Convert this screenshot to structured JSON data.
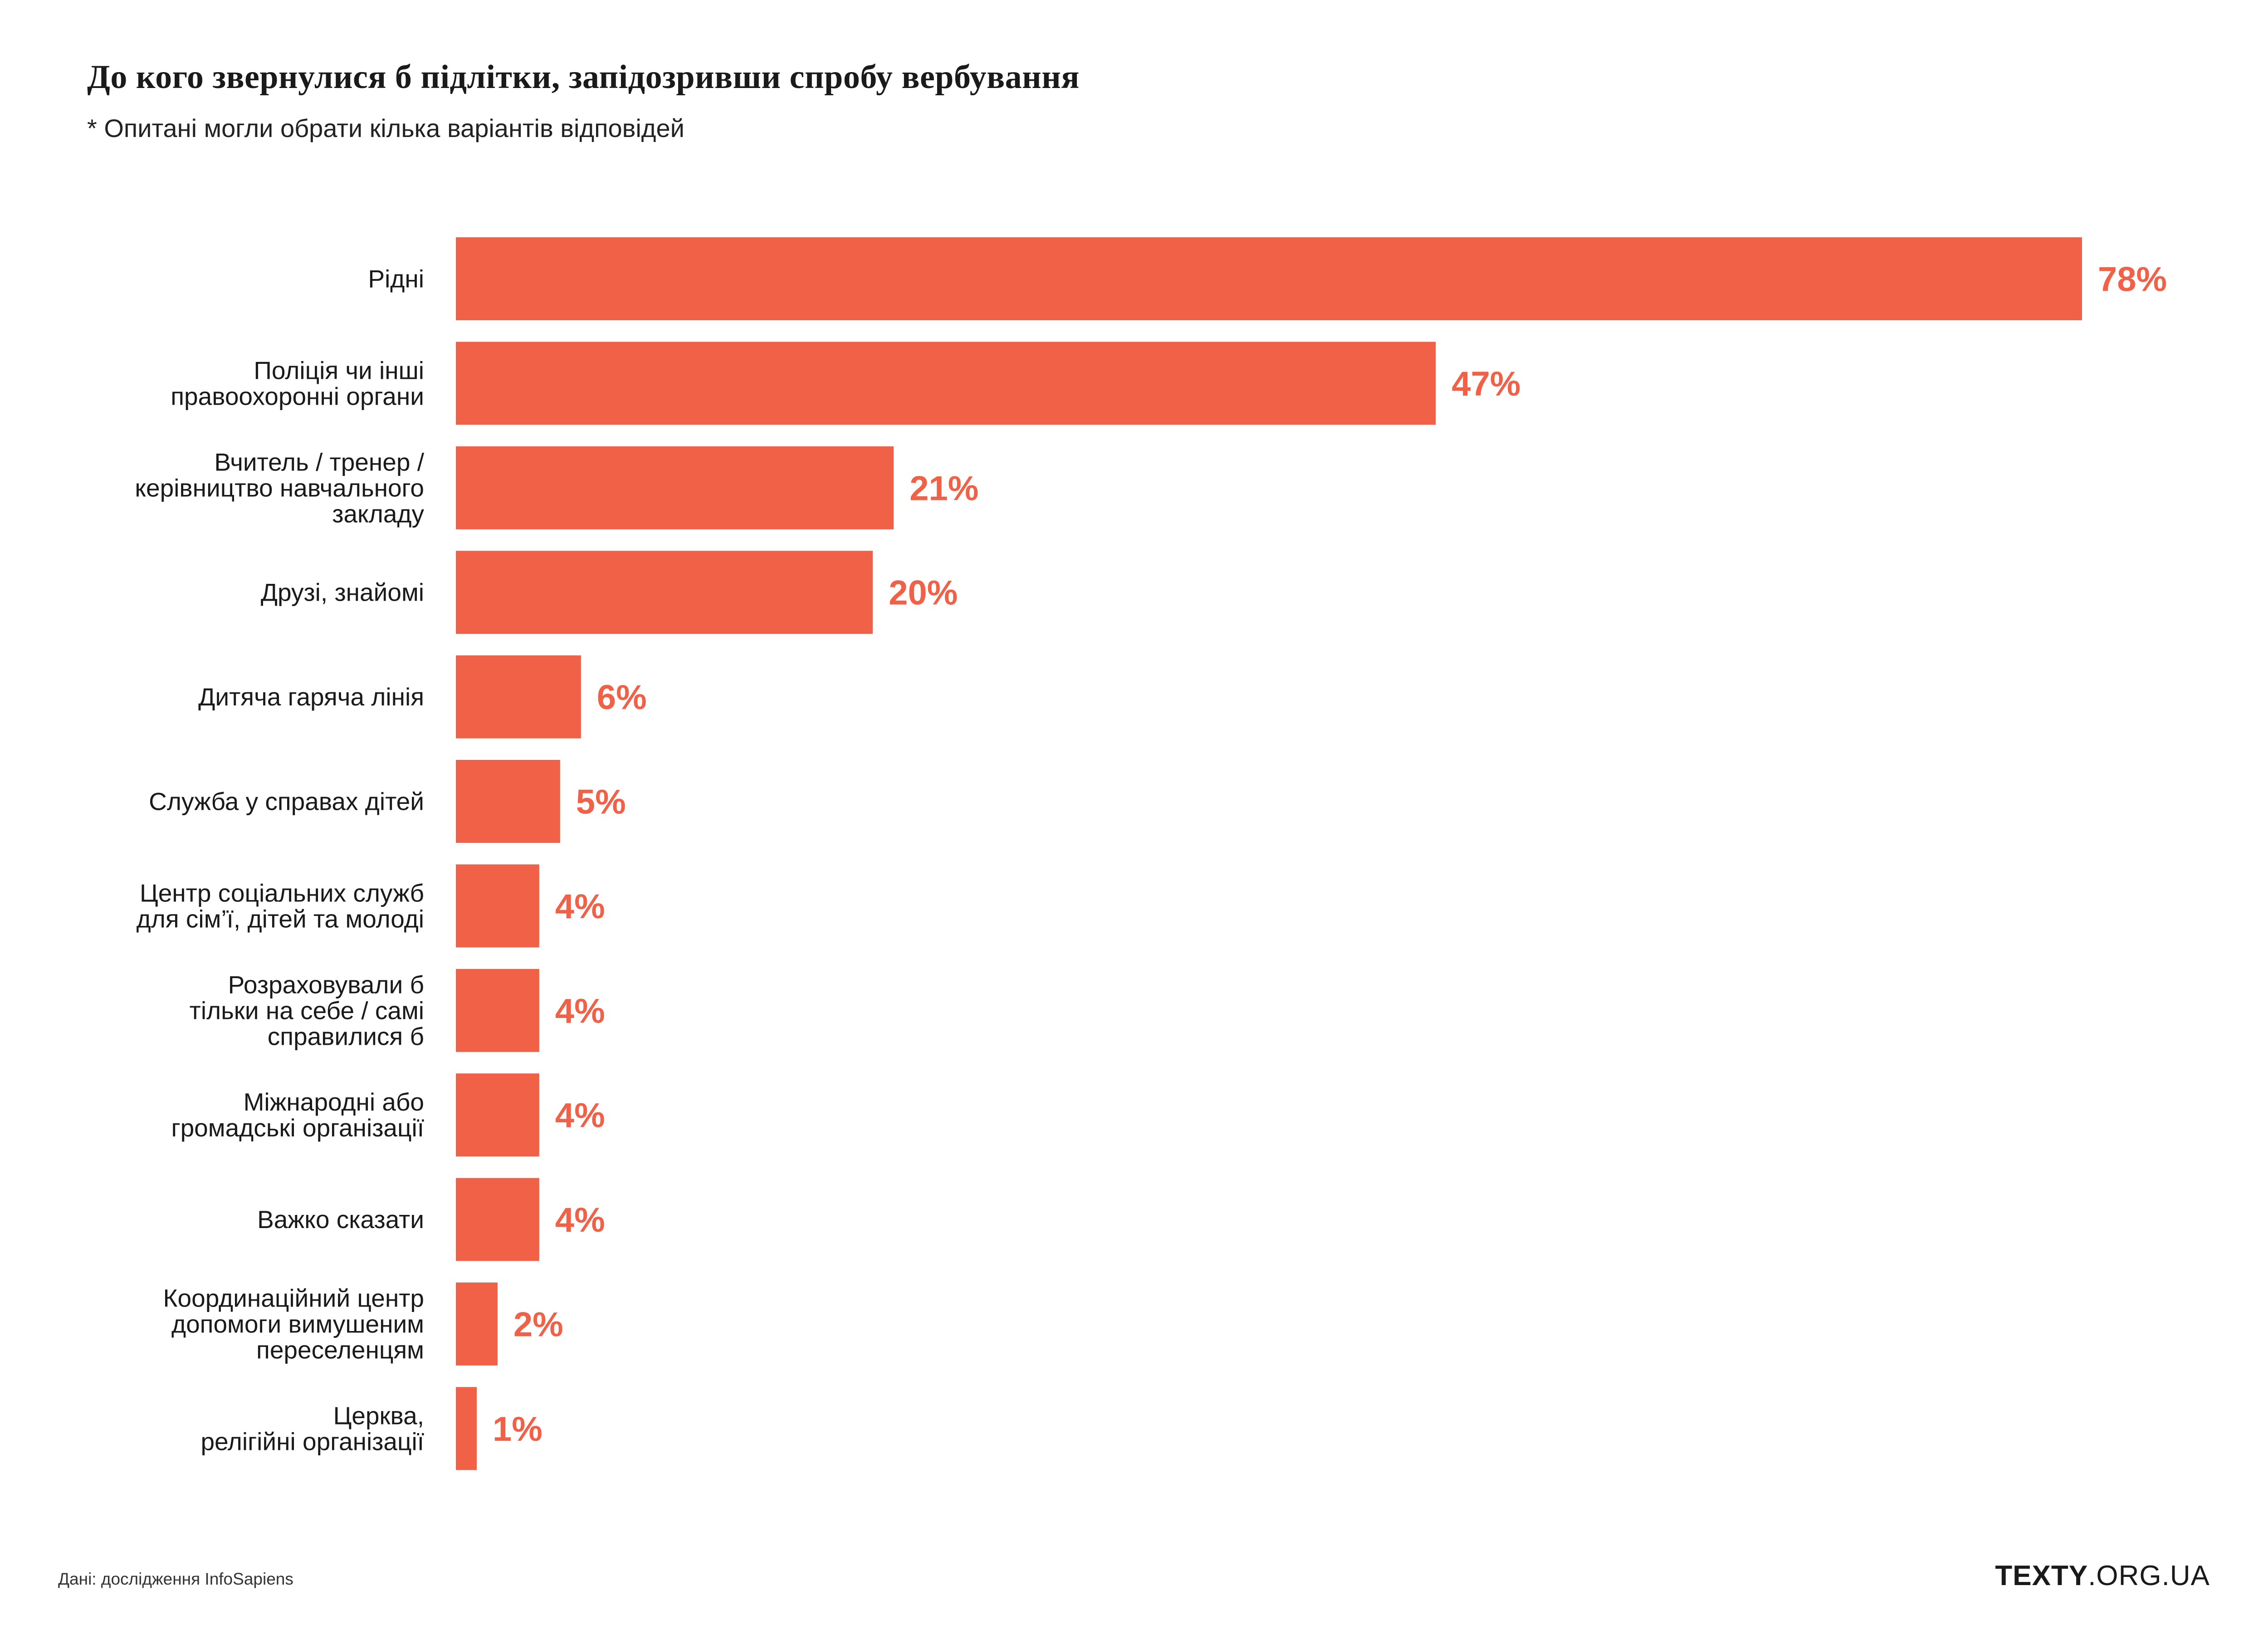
{
  "title": "До кого звернулися б підлітки, запідозривши спробу вербування",
  "subtitle": "* Опитані могли обрати кілька варіантів відповідей",
  "source": "Дані: дослідження InfoSapiens",
  "brand": {
    "bold": "TEXTY",
    "rest": ".ORG.UA"
  },
  "colors": {
    "bar": "#f06148",
    "label": "#f06148",
    "text": "#1a1a1a"
  },
  "chart_data": {
    "type": "bar",
    "orientation": "horizontal",
    "title": "До кого звернулися б підлітки, запідозривши спробу вербування",
    "xlabel": "",
    "ylabel": "",
    "xlim": [
      0,
      78
    ],
    "grid": false,
    "legend": "none",
    "unit": "%",
    "categories": [
      [
        "Рідні"
      ],
      [
        "Поліція чи інші",
        "правоохоронні органи"
      ],
      [
        "Вчитель / тренер /",
        "керівництво навчального",
        "закладу"
      ],
      [
        "Друзі, знайомі"
      ],
      [
        "Дитяча гаряча лінія"
      ],
      [
        "Служба у справах дітей"
      ],
      [
        "Центр соціальних служб",
        "для сім’ї, дітей та молоді"
      ],
      [
        "Розраховували б",
        "тільки на себе / самі",
        "справилися б"
      ],
      [
        "Міжнародні або",
        "громадські організації"
      ],
      [
        "Важко сказати"
      ],
      [
        "Координаційний центр",
        "допомоги вимушеним",
        "переселенцям"
      ],
      [
        "Церква,",
        "релігійні організації"
      ]
    ],
    "values": [
      78,
      47,
      21,
      20,
      6,
      5,
      4,
      4,
      4,
      4,
      2,
      1
    ],
    "labels": [
      "78%",
      "47%",
      "21%",
      "20%",
      "6%",
      "5%",
      "4%",
      "4%",
      "4%",
      "4%",
      "2%",
      "1%"
    ]
  }
}
